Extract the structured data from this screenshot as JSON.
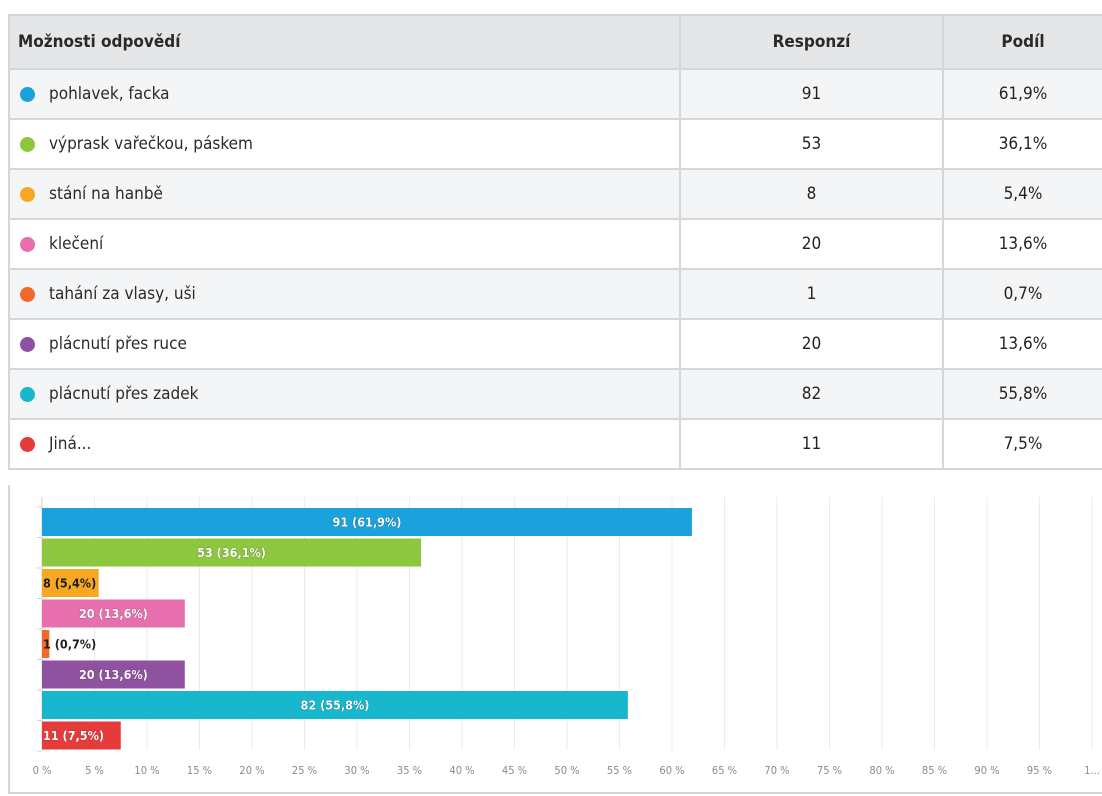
{
  "table": {
    "headers": {
      "option": "Možnosti odpovědí",
      "responses": "Responzí",
      "share": "Podíl"
    },
    "rows": [
      {
        "label": "pohlavek, facka",
        "responses": "91",
        "share": "61,9%",
        "color": "#1ba1dc"
      },
      {
        "label": "výprask vařečkou, páskem",
        "responses": "53",
        "share": "36,1%",
        "color": "#8dc63f"
      },
      {
        "label": "stání na hanbě",
        "responses": "8",
        "share": "5,4%",
        "color": "#f7a823"
      },
      {
        "label": "klečení",
        "responses": "20",
        "share": "13,6%",
        "color": "#e86fae"
      },
      {
        "label": "tahání za vlasy, uši",
        "responses": "1",
        "share": "0,7%",
        "color": "#f26a2a"
      },
      {
        "label": "plácnutí přes ruce",
        "responses": "20",
        "share": "13,6%",
        "color": "#8e52a1"
      },
      {
        "label": "plácnutí přes zadek",
        "responses": "82",
        "share": "55,8%",
        "color": "#17b8ce"
      },
      {
        "label": "Jiná...",
        "responses": "11",
        "share": "7,5%",
        "color": "#e63b3b"
      }
    ]
  },
  "chart_data": {
    "type": "bar",
    "orientation": "horizontal",
    "categories": [
      "pohlavek, facka",
      "výprask vařečkou, páskem",
      "stání na hanbě",
      "klečení",
      "tahání za vlasy, uši",
      "plácnutí přes ruce",
      "plácnutí přes zadek",
      "Jiná..."
    ],
    "counts": [
      91,
      53,
      8,
      20,
      1,
      20,
      82,
      11
    ],
    "values": [
      61.9,
      36.1,
      5.4,
      13.6,
      0.7,
      13.6,
      55.8,
      7.5
    ],
    "data_labels": [
      "91 (61,9%)",
      "53 (36,1%)",
      "8 (5,4%)",
      "20 (13,6%)",
      "1 (0,7%)",
      "20 (13,6%)",
      "82 (55,8%)",
      "11 (7,5%)"
    ],
    "colors": [
      "#1ba1dc",
      "#8dc63f",
      "#f7a823",
      "#e86fae",
      "#f26a2a",
      "#8e52a1",
      "#17b8ce",
      "#e63b3b"
    ],
    "x_ticks": [
      "0 %",
      "5 %",
      "10 %",
      "15 %",
      "20 %",
      "25 %",
      "30 %",
      "35 %",
      "40 %",
      "45 %",
      "50 %",
      "55 %",
      "60 %",
      "65 %",
      "70 %",
      "75 %",
      "80 %",
      "85 %",
      "90 %",
      "95 %",
      "1..."
    ],
    "xlim": [
      0,
      100
    ],
    "grid": true
  }
}
